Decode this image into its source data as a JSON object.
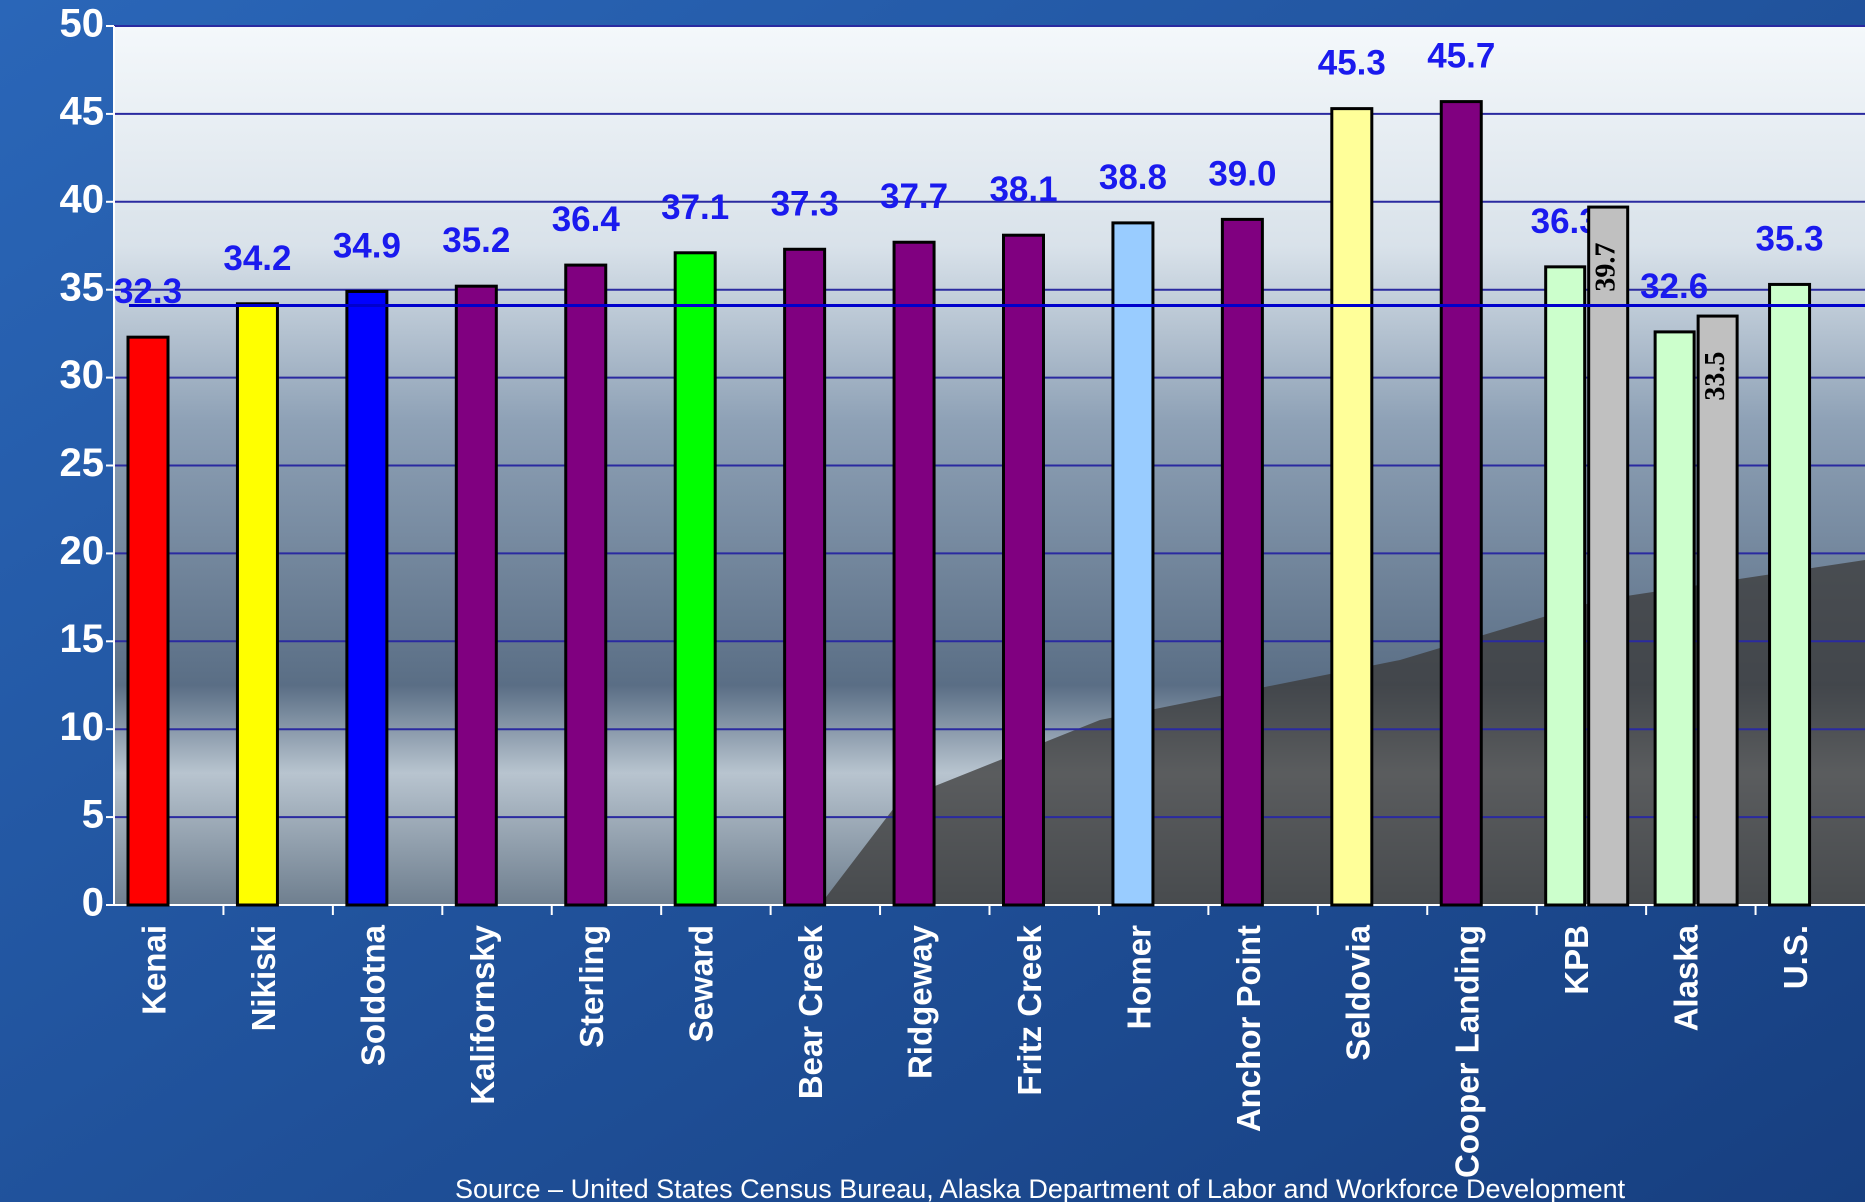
{
  "chart_data": {
    "type": "bar",
    "categories": [
      "Kenai",
      "Nikiski",
      "Soldotna",
      "Kalifornsky",
      "Sterling",
      "Seward",
      "Bear Creek",
      "Ridgeway",
      "Fritz Creek",
      "Homer",
      "Anchor Point",
      "Seldovia",
      "Cooper Landing",
      "KPB",
      "Alaska",
      "U.S."
    ],
    "series": [
      {
        "colors": [
          "#ff0000",
          "#ffff00",
          "#0000ff",
          "#800080",
          "#800080",
          "#00ff00",
          "#800080",
          "#800080",
          "#800080",
          "#99ccff",
          "#800080",
          "#ffff99",
          "#800080",
          "#ccffcc",
          "#ccffcc",
          "#ccffcc"
        ],
        "values": [
          32.3,
          34.2,
          34.9,
          35.2,
          36.4,
          37.1,
          37.3,
          37.7,
          38.1,
          38.8,
          39.0,
          45.3,
          45.7,
          36.3,
          32.6,
          35.3
        ],
        "value_labels": [
          "32.3",
          "34.2",
          "34.9",
          "35.2",
          "36.4",
          "37.1",
          "37.3",
          "37.7",
          "38.1",
          "38.8",
          "39.0",
          "45.3",
          "45.7",
          "36.3",
          "32.6",
          "35.3"
        ]
      },
      {
        "color": "#c0c0c0",
        "values": [
          null,
          null,
          null,
          null,
          null,
          null,
          null,
          null,
          null,
          null,
          null,
          null,
          null,
          39.7,
          33.5,
          null
        ]
      }
    ],
    "reference_line": 34.1,
    "ylim": [
      0,
      50
    ],
    "yticks": [
      0,
      5,
      10,
      15,
      20,
      25,
      30,
      35,
      40,
      45,
      50
    ],
    "grid": true,
    "source": "Source – United States Census Bureau, Alaska Department of Labor and Workforce Development"
  }
}
